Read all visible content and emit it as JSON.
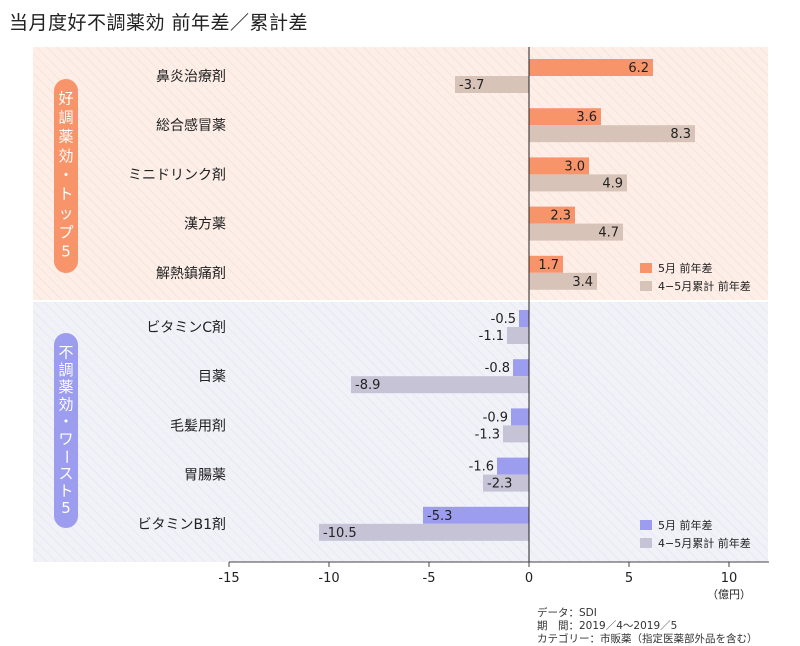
{
  "title": "当月度好不調薬効 前年差／累計差",
  "chart_data": {
    "type": "bar",
    "orientation": "horizontal",
    "xlim": [
      -15,
      12
    ],
    "xticks": [
      -15,
      -10,
      -5,
      0,
      5,
      10
    ],
    "unit": "（億円）",
    "groups": [
      {
        "label": "好調薬効・トップ5",
        "color_current": "#f7946a",
        "color_cumulative": "#d8c3b8",
        "legend": [
          "5月 前年差",
          "4−5月累計 前年差"
        ],
        "categories": [
          "鼻炎治療剤",
          "総合感冒薬",
          "ミニドリンク剤",
          "漢方薬",
          "解熱鎮痛剤"
        ],
        "current": [
          6.2,
          3.6,
          3.0,
          2.3,
          1.7
        ],
        "cumulative": [
          -3.7,
          8.3,
          4.9,
          4.7,
          3.4
        ]
      },
      {
        "label": "不調薬効・ワースト5",
        "color_current": "#9d9df0",
        "color_cumulative": "#c6c3d6",
        "legend": [
          "5月 前年差",
          "4−5月累計 前年差"
        ],
        "categories": [
          "ビタミンC剤",
          "目薬",
          "毛髪用剤",
          "胃腸薬",
          "ビタミンB1剤"
        ],
        "current": [
          -0.5,
          -0.8,
          -0.9,
          -1.6,
          -5.3
        ],
        "cumulative": [
          -1.1,
          -8.9,
          -1.3,
          -2.3,
          -10.5
        ]
      }
    ]
  },
  "footnote": {
    "line1": "データ：SDI",
    "line2": "期　間：2019／4〜2019／5",
    "line3": "カテゴリー：市販薬（指定医薬部外品を含む）"
  }
}
